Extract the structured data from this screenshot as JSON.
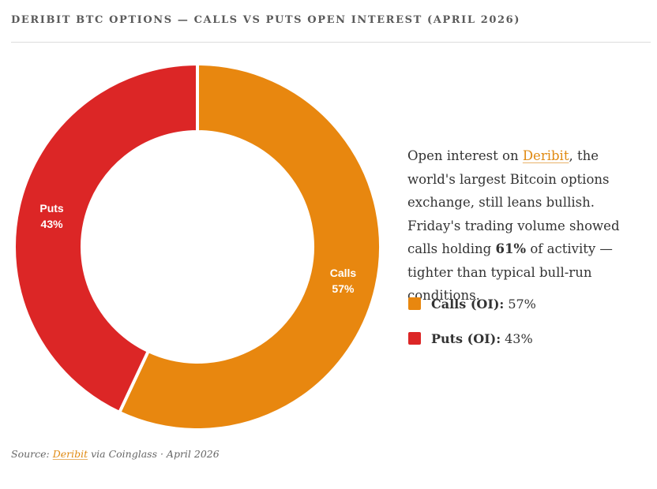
{
  "header": {
    "title": "DERIBIT BTC OPTIONS — CALLS VS PUTS OPEN INTEREST (APRIL 2026)"
  },
  "description": {
    "before_link": "Open interest on ",
    "link": "Deribit",
    "after_link": ", the world's largest Bitcoin options exchange, still leans bullish. Friday's trading volume showed calls holding ",
    "highlight": "61%",
    "end": " of activity — tighter than typical bull-run conditions."
  },
  "legend": [
    {
      "label": "Calls (OI):",
      "value": "57%",
      "color": "#e8870f"
    },
    {
      "label": "Puts (OI):",
      "value": "43%",
      "color": "#dc2626"
    }
  ],
  "source": {
    "prefix": "Source: ",
    "link": "Deribit",
    "suffix": " via Coinglass · April 2026"
  },
  "chart_data": {
    "type": "pie",
    "variant": "donut",
    "title": "DERIBIT BTC OPTIONS — CALLS VS PUTS OPEN INTEREST (APRIL 2026)",
    "categories": [
      "Calls",
      "Puts"
    ],
    "values": [
      57,
      43
    ],
    "labels": [
      "57%",
      "43%"
    ],
    "colors": [
      "#e8870f",
      "#dc2626"
    ],
    "start": "top",
    "direction": "clockwise"
  }
}
